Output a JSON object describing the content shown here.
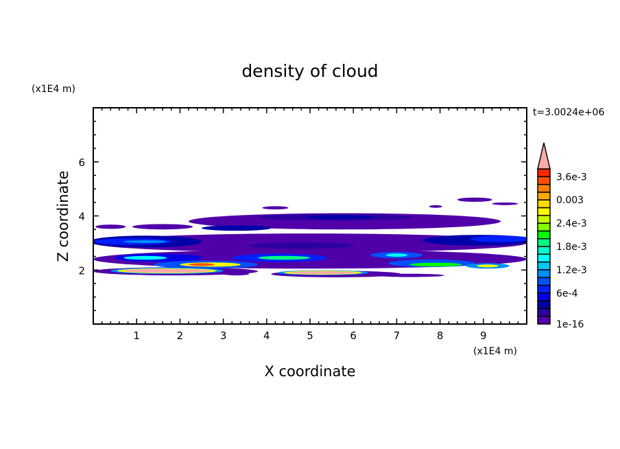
{
  "chart_data": {
    "type": "heatmap",
    "title": "density of cloud",
    "xlabel": "X coordinate",
    "ylabel": "Z coordinate",
    "x_unit": "(x1E4 m)",
    "y_unit": "(x1E4 m)",
    "time_label": "t=3.0024e+06",
    "xlim": [
      0,
      10
    ],
    "ylim": [
      0,
      8
    ],
    "x_ticks": [
      1,
      2,
      3,
      4,
      5,
      6,
      7,
      8,
      9
    ],
    "y_ticks": [
      2,
      4,
      6
    ],
    "x_minor_step": 0.2,
    "y_minor_step": 0.5,
    "grid": false,
    "colorbar": {
      "position": "right",
      "extend": "max",
      "levels_min": 1e-16,
      "level_step": 0.0002,
      "labels": [
        "1e-16",
        "6e-4",
        "1.2e-3",
        "1.8e-3",
        "2.4e-3",
        "0.003",
        "3.6e-3"
      ],
      "label_levels": [
        0,
        3,
        6,
        9,
        12,
        15,
        18
      ],
      "colors": [
        "#5000a8",
        "#2c00a0",
        "#0000a8",
        "#0000e8",
        "#0020ff",
        "#0050ff",
        "#0090ff",
        "#00c8ff",
        "#00ffff",
        "#00ffc8",
        "#00ff80",
        "#00ff00",
        "#80ff00",
        "#c8ff00",
        "#ffff00",
        "#ffdc00",
        "#ffa800",
        "#ff8000",
        "#ff5000",
        "#ff2800",
        "#ff2828"
      ],
      "over_color": "#ffaaaa"
    },
    "regions": [
      {
        "x": 0.4,
        "z": 3.6,
        "rx": 0.35,
        "rz": 0.08,
        "level": 0
      },
      {
        "x": 1.6,
        "z": 3.6,
        "rx": 0.7,
        "rz": 0.1,
        "level": 0
      },
      {
        "x": 5.8,
        "z": 3.8,
        "rx": 3.6,
        "rz": 0.3,
        "level": 0
      },
      {
        "x": 5.6,
        "z": 3.95,
        "rx": 1.8,
        "rz": 0.12,
        "level": 1
      },
      {
        "x": 5.7,
        "z": 3.95,
        "rx": 0.8,
        "rz": 0.07,
        "level": 2
      },
      {
        "x": 3.3,
        "z": 3.55,
        "rx": 0.8,
        "rz": 0.1,
        "level": 2
      },
      {
        "x": 7.9,
        "z": 4.35,
        "rx": 0.15,
        "rz": 0.05,
        "level": 0
      },
      {
        "x": 8.8,
        "z": 4.6,
        "rx": 0.4,
        "rz": 0.08,
        "level": 0
      },
      {
        "x": 9.5,
        "z": 4.45,
        "rx": 0.3,
        "rz": 0.05,
        "level": 0
      },
      {
        "x": 4.2,
        "z": 4.3,
        "rx": 0.3,
        "rz": 0.06,
        "level": 0
      },
      {
        "x": 5.0,
        "z": 3.0,
        "rx": 5.0,
        "rz": 0.35,
        "level": 0
      },
      {
        "x": 1.2,
        "z": 3.05,
        "rx": 1.3,
        "rz": 0.22,
        "level": 2
      },
      {
        "x": 0.9,
        "z": 3.05,
        "rx": 0.9,
        "rz": 0.12,
        "level": 4
      },
      {
        "x": 1.2,
        "z": 3.05,
        "rx": 0.5,
        "rz": 0.05,
        "level": 6
      },
      {
        "x": 8.9,
        "z": 3.1,
        "rx": 1.3,
        "rz": 0.2,
        "level": 2
      },
      {
        "x": 9.4,
        "z": 3.15,
        "rx": 0.7,
        "rz": 0.12,
        "level": 4
      },
      {
        "x": 4.8,
        "z": 2.9,
        "rx": 1.2,
        "rz": 0.12,
        "level": 1
      },
      {
        "x": 5.0,
        "z": 2.4,
        "rx": 5.0,
        "rz": 0.35,
        "level": 0
      },
      {
        "x": 1.5,
        "z": 2.45,
        "rx": 1.0,
        "rz": 0.15,
        "level": 3
      },
      {
        "x": 1.2,
        "z": 2.45,
        "rx": 0.5,
        "rz": 0.07,
        "level": 8
      },
      {
        "x": 4.3,
        "z": 2.45,
        "rx": 1.1,
        "rz": 0.15,
        "level": 4
      },
      {
        "x": 4.4,
        "z": 2.45,
        "rx": 0.6,
        "rz": 0.07,
        "level": 10
      },
      {
        "x": 7.0,
        "z": 2.55,
        "rx": 0.6,
        "rz": 0.12,
        "level": 5
      },
      {
        "x": 7.0,
        "z": 2.55,
        "rx": 0.25,
        "rz": 0.06,
        "level": 8
      },
      {
        "x": 7.8,
        "z": 2.25,
        "rx": 1.0,
        "rz": 0.14,
        "level": 5
      },
      {
        "x": 7.9,
        "z": 2.2,
        "rx": 0.6,
        "rz": 0.07,
        "level": 11
      },
      {
        "x": 9.1,
        "z": 2.15,
        "rx": 0.5,
        "rz": 0.1,
        "level": 6
      },
      {
        "x": 9.1,
        "z": 2.15,
        "rx": 0.25,
        "rz": 0.05,
        "level": 14
      },
      {
        "x": 2.6,
        "z": 2.2,
        "rx": 1.2,
        "rz": 0.15,
        "level": 5
      },
      {
        "x": 2.7,
        "z": 2.2,
        "rx": 0.7,
        "rz": 0.08,
        "level": 14
      },
      {
        "x": 2.5,
        "z": 2.2,
        "rx": 0.3,
        "rz": 0.05,
        "level": 18
      },
      {
        "x": 1.9,
        "z": 1.95,
        "rx": 1.9,
        "rz": 0.15,
        "level": 0
      },
      {
        "x": 1.7,
        "z": 1.97,
        "rx": 1.3,
        "rz": 0.12,
        "level": 6
      },
      {
        "x": 1.7,
        "z": 1.97,
        "rx": 1.15,
        "rz": 0.09,
        "level": 14
      },
      {
        "x": 1.7,
        "z": 1.97,
        "rx": 1.0,
        "rz": 0.07,
        "level": 20
      },
      {
        "x": 5.6,
        "z": 1.85,
        "rx": 1.5,
        "rz": 0.12,
        "level": 0
      },
      {
        "x": 5.3,
        "z": 1.9,
        "rx": 1.05,
        "rz": 0.09,
        "level": 6
      },
      {
        "x": 5.3,
        "z": 1.9,
        "rx": 0.9,
        "rz": 0.07,
        "level": 14
      },
      {
        "x": 5.3,
        "z": 1.9,
        "rx": 0.75,
        "rz": 0.05,
        "level": 20
      },
      {
        "x": 7.3,
        "z": 1.8,
        "rx": 0.8,
        "rz": 0.06,
        "level": 0
      },
      {
        "x": 3.3,
        "z": 1.85,
        "rx": 0.3,
        "rz": 0.05,
        "level": 0
      }
    ]
  }
}
